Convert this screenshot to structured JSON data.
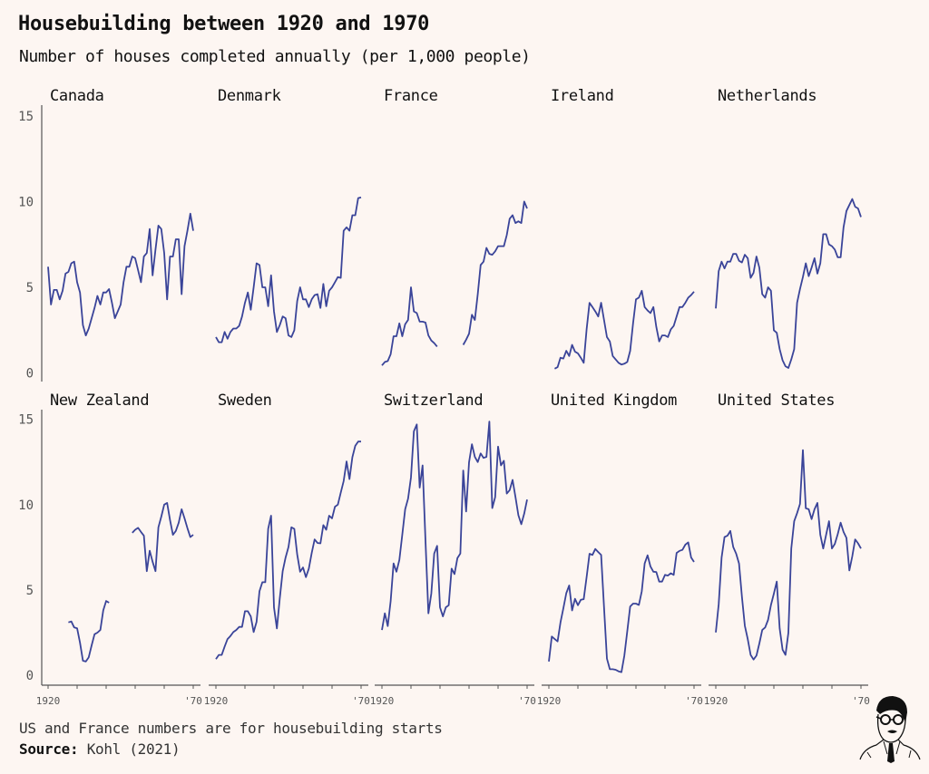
{
  "header": {
    "title": "Housebuilding between 1920 and 1970",
    "subtitle": "Number of houses completed annually (per 1,000 people)"
  },
  "footer": {
    "note": "US and France numbers are for housebuilding starts",
    "source_label": "Source:",
    "source_text": "Kohl (2021)"
  },
  "logo": {
    "icon": "caricature-portrait-icon"
  },
  "chart_data": {
    "type": "line",
    "layout": "small-multiples",
    "line_color": "#3a4499",
    "background": "#fdf6f2",
    "ylim": [
      0,
      15
    ],
    "yticks": [
      "0",
      "5",
      "10",
      "15"
    ],
    "ytick_values": [
      0,
      5,
      10,
      15
    ],
    "xlim": [
      1920,
      1970
    ],
    "xtick_labels": {
      "first": "1920",
      "last": "'70"
    },
    "grid": false,
    "panels": [
      {
        "name": "Canada",
        "segments": [
          {
            "start": 1920,
            "values": [
              6.2,
              4.0,
              4.85,
              4.85,
              4.3,
              4.8,
              5.8,
              5.9,
              6.4,
              6.5,
              5.3,
              4.7,
              2.8,
              2.2,
              2.6,
              3.2,
              3.8,
              4.5,
              4.0,
              4.7,
              4.7,
              4.9,
              4.1,
              3.2,
              3.6,
              4.0,
              5.3,
              6.2,
              6.2,
              6.8,
              6.7,
              6.0,
              5.3,
              6.8,
              7.0,
              8.4,
              5.7,
              7.2,
              8.6,
              8.4,
              7.0,
              4.3,
              6.8,
              6.8,
              7.8,
              7.8,
              4.6,
              7.4,
              8.3,
              9.3,
              8.3
            ]
          }
        ]
      },
      {
        "name": "Denmark",
        "segments": [
          {
            "start": 1920,
            "values": [
              2.1,
              1.8,
              1.8,
              2.4,
              2.0,
              2.4,
              2.6,
              2.6,
              2.75,
              3.3,
              4.1,
              4.7,
              3.7,
              5.0,
              6.4,
              6.3,
              5.0,
              5.0,
              3.9,
              5.7,
              3.6,
              2.4,
              2.8,
              3.3,
              3.2,
              2.2,
              2.1,
              2.5,
              4.2,
              5.0,
              4.3,
              4.3,
              3.85,
              4.3,
              4.55,
              4.6,
              3.8,
              5.2,
              3.9,
              4.8,
              5.0,
              5.3,
              5.6,
              5.55,
              8.3,
              8.5,
              8.3,
              9.2,
              9.2,
              10.2,
              10.25
            ]
          }
        ]
      },
      {
        "name": "France",
        "segments": [
          {
            "start": 1920,
            "values": [
              0.45,
              0.65,
              0.7,
              1.1,
              2.15,
              2.15,
              2.9,
              2.15,
              2.85,
              3.1,
              5.0,
              3.6,
              3.5,
              3.0,
              3.0,
              2.95,
              2.2,
              1.9,
              1.75,
              1.55
            ]
          },
          {
            "start": 1948,
            "values": [
              1.65,
              1.95,
              2.3,
              3.4,
              3.1,
              4.6,
              6.3,
              6.5,
              7.3,
              6.95,
              6.9,
              7.1,
              7.4,
              7.4,
              7.4,
              8.05,
              9.0,
              9.2,
              8.75,
              8.85,
              8.75,
              10.0,
              9.6
            ]
          }
        ]
      },
      {
        "name": "Ireland",
        "segments": [
          {
            "start": 1922,
            "values": [
              0.26,
              0.35,
              0.9,
              0.85,
              1.3,
              1.0,
              1.65,
              1.25,
              1.15,
              0.9,
              0.6,
              2.55,
              4.1,
              3.85,
              3.6,
              3.3,
              4.1,
              3.1,
              2.1,
              1.85,
              1.0,
              0.8,
              0.6,
              0.5,
              0.55,
              0.65,
              1.3,
              2.9,
              4.3,
              4.4,
              4.8,
              3.85,
              3.65,
              3.5,
              3.85,
              2.7,
              1.85,
              2.2,
              2.2,
              2.1,
              2.55,
              2.75,
              3.3,
              3.85,
              3.85,
              4.1,
              4.4,
              4.55,
              4.75
            ]
          }
        ]
      },
      {
        "name": "Netherlands",
        "segments": [
          {
            "start": 1920,
            "values": [
              3.77,
              5.95,
              6.5,
              6.1,
              6.5,
              6.5,
              6.95,
              6.95,
              6.55,
              6.45,
              6.9,
              6.7,
              5.55,
              5.85,
              6.8,
              6.15,
              4.6,
              4.4,
              5.0,
              4.8,
              2.5,
              2.35,
              1.4,
              0.75,
              0.4,
              0.3,
              0.8,
              1.4,
              4.1,
              4.9,
              5.6,
              6.4,
              5.65,
              6.15,
              6.7,
              5.8,
              6.4,
              8.1,
              8.1,
              7.5,
              7.4,
              7.2,
              6.75,
              6.75,
              8.5,
              9.45,
              9.8,
              10.15,
              9.7,
              9.6,
              9.1
            ]
          }
        ]
      },
      {
        "name": "New Zealand",
        "segments": [
          {
            "start": 1927,
            "values": [
              3.1,
              3.15,
              2.8,
              2.75,
              1.9,
              0.85,
              0.8,
              1.05,
              1.75,
              2.4,
              2.5,
              2.65,
              3.8,
              4.35,
              4.25
            ]
          },
          {
            "start": 1949,
            "values": [
              8.35,
              8.53,
              8.64,
              8.4,
              8.18,
              6.1,
              7.3,
              6.65,
              6.1,
              8.67,
              9.3,
              10.0,
              10.1,
              9.1,
              8.23,
              8.46,
              8.94,
              9.73,
              9.2,
              8.62,
              8.1,
              8.23
            ]
          }
        ]
      },
      {
        "name": "Sweden",
        "segments": [
          {
            "start": 1920,
            "values": [
              0.94,
              1.19,
              1.19,
              1.68,
              2.12,
              2.3,
              2.53,
              2.65,
              2.83,
              2.83,
              3.75,
              3.75,
              3.45,
              2.53,
              3.13,
              4.92,
              5.45,
              5.45,
              8.58,
              9.35,
              3.98,
              2.74,
              4.51,
              6.1,
              6.9,
              7.52,
              8.67,
              8.58,
              7.08,
              6.07,
              6.32,
              5.75,
              6.25,
              7.17,
              7.96,
              7.75,
              7.73,
              8.8,
              8.53,
              9.35,
              9.2,
              9.88,
              10.0,
              10.7,
              11.38,
              12.53,
              11.5,
              12.78,
              13.45,
              13.7,
              13.7
            ]
          }
        ]
      },
      {
        "name": "Switzerland",
        "segments": [
          {
            "start": 1920,
            "values": [
              2.65,
              3.63,
              2.88,
              4.34,
              6.55,
              6.07,
              6.76,
              8.23,
              9.73,
              10.35,
              11.6,
              14.3,
              14.7,
              11.0,
              12.3,
              7.88,
              3.63,
              4.78,
              7.13,
              7.58,
              3.98,
              3.45,
              3.98,
              4.1,
              6.25,
              5.93,
              6.87,
              7.13,
              12.0,
              9.6,
              12.48,
              13.54,
              12.8,
              12.5,
              13.0,
              12.74,
              12.8,
              14.87,
              9.8,
              10.44,
              13.4,
              12.3,
              12.57,
              10.65,
              10.85,
              11.45,
              10.44,
              9.38,
              8.85,
              9.47,
              10.3
            ]
          }
        ]
      },
      {
        "name": "United Kingdom",
        "segments": [
          {
            "start": 1920,
            "values": [
              0.8,
              2.27,
              2.12,
              1.98,
              3.1,
              3.93,
              4.81,
              5.26,
              3.8,
              4.48,
              4.1,
              4.42,
              4.46,
              5.75,
              7.12,
              7.05,
              7.4,
              7.22,
              7.05,
              3.98,
              0.97,
              0.35,
              0.35,
              0.32,
              0.23,
              0.18,
              1.15,
              2.57,
              4.02,
              4.2,
              4.2,
              4.12,
              4.92,
              6.55,
              7.03,
              6.37,
              6.07,
              6.05,
              5.49,
              5.49,
              5.88,
              5.84,
              5.98,
              5.88,
              7.17,
              7.29,
              7.35,
              7.65,
              7.79,
              6.9,
              6.64
            ]
          }
        ]
      },
      {
        "name": "United States",
        "segments": [
          {
            "start": 1920,
            "values": [
              2.51,
              4.16,
              6.9,
              8.1,
              8.18,
              8.46,
              7.52,
              7.13,
              6.55,
              4.6,
              2.9,
              2.12,
              1.19,
              0.92,
              1.15,
              1.86,
              2.65,
              2.8,
              3.24,
              4.12,
              4.78,
              5.49,
              2.74,
              1.5,
              1.19,
              2.48,
              7.43,
              9.03,
              9.5,
              10.04,
              13.2,
              9.79,
              9.73,
              9.15,
              9.73,
              10.1,
              8.23,
              7.43,
              8.23,
              9.03,
              7.43,
              7.7,
              8.27,
              8.94,
              8.4,
              8.05,
              6.14,
              6.96,
              7.96,
              7.73,
              7.43
            ]
          }
        ]
      }
    ]
  }
}
